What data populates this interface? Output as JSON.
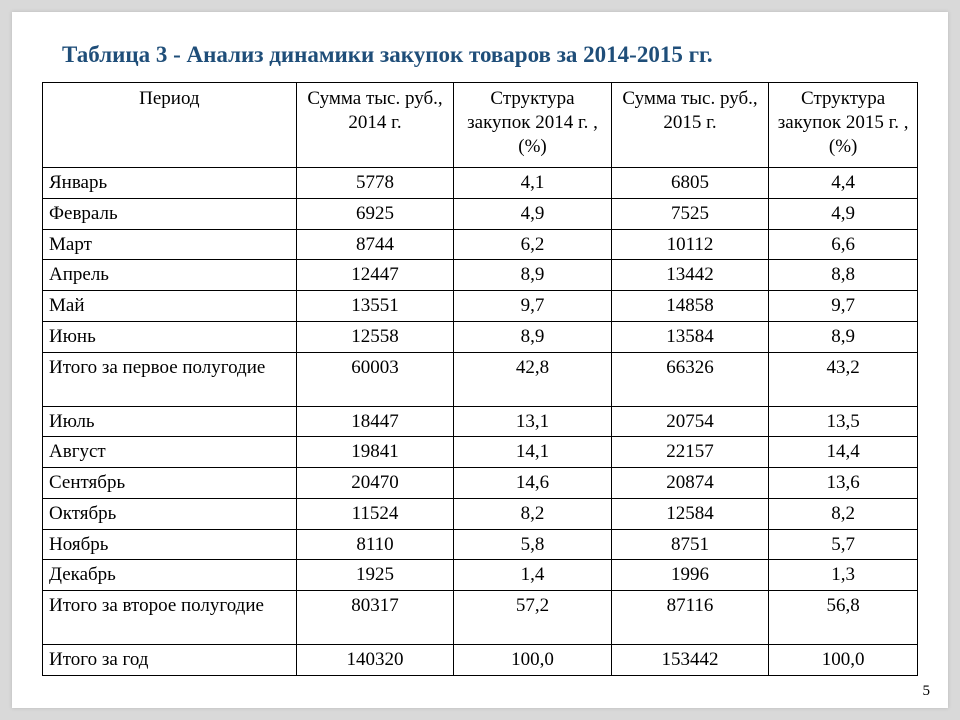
{
  "title": "Таблица 3 - Анализ динамики закупок товаров за 2014-2015 гг.",
  "title_color": "#1f4e79",
  "page_number": "5",
  "background_color": "#d9d9d9",
  "slide_color": "#ffffff",
  "border_color": "#000000",
  "font_family": "Times New Roman",
  "table": {
    "columns": [
      "Период",
      "Сумма тыс. руб., 2014 г.",
      "Структура закупок 2014 г. ,(%)",
      "Сумма тыс. руб., 2015 г.",
      "Структура закупок 2015 г. ,(%)"
    ],
    "column_widths_pct": [
      29,
      18,
      18,
      18,
      17
    ],
    "header_align": "center",
    "numeric_align": "center",
    "period_align": "left",
    "rows": [
      {
        "period": "Январь",
        "c1": "5778",
        "c2": "4,1",
        "c3": "6805",
        "c4": "4,4",
        "tall": false
      },
      {
        "period": "Февраль",
        "c1": "6925",
        "c2": "4,9",
        "c3": "7525",
        "c4": "4,9",
        "tall": false
      },
      {
        "period": "Март",
        "c1": "8744",
        "c2": "6,2",
        "c3": "10112",
        "c4": "6,6",
        "tall": false
      },
      {
        "period": "Апрель",
        "c1": "12447",
        "c2": "8,9",
        "c3": "13442",
        "c4": "8,8",
        "tall": false
      },
      {
        "period": "Май",
        "c1": "13551",
        "c2": "9,7",
        "c3": "14858",
        "c4": "9,7",
        "tall": false
      },
      {
        "period": "Июнь",
        "c1": "12558",
        "c2": "8,9",
        "c3": "13584",
        "c4": "8,9",
        "tall": false
      },
      {
        "period": "Итого за первое полугодие",
        "c1": "60003",
        "c2": "42,8",
        "c3": "66326",
        "c4": "43,2",
        "tall": true
      },
      {
        "period": "Июль",
        "c1": "18447",
        "c2": "13,1",
        "c3": "20754",
        "c4": "13,5",
        "tall": false
      },
      {
        "period": "Август",
        "c1": "19841",
        "c2": "14,1",
        "c3": "22157",
        "c4": "14,4",
        "tall": false
      },
      {
        "period": "Сентябрь",
        "c1": "20470",
        "c2": "14,6",
        "c3": "20874",
        "c4": "13,6",
        "tall": false
      },
      {
        "period": "Октябрь",
        "c1": "11524",
        "c2": "8,2",
        "c3": "12584",
        "c4": "8,2",
        "tall": false
      },
      {
        "period": "Ноябрь",
        "c1": "8110",
        "c2": "5,8",
        "c3": "8751",
        "c4": "5,7",
        "tall": false
      },
      {
        "period": "Декабрь",
        "c1": "1925",
        "c2": "1,4",
        "c3": "1996",
        "c4": "1,3",
        "tall": false
      },
      {
        "period": "Итого за второе полугодие",
        "c1": "80317",
        "c2": "57,2",
        "c3": "87116",
        "c4": "56,8",
        "tall": true
      },
      {
        "period": "Итого за год",
        "c1": "140320",
        "c2": "100,0",
        "c3": "153442",
        "c4": "100,0",
        "tall": false
      }
    ]
  }
}
